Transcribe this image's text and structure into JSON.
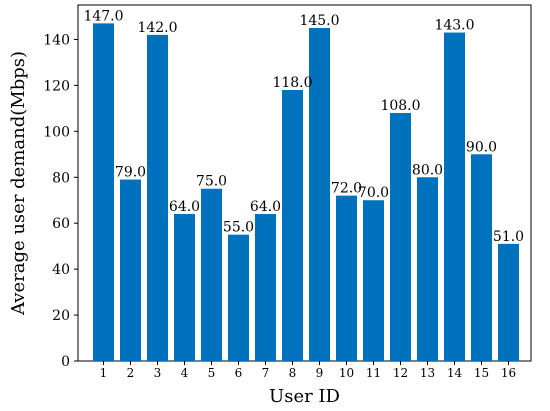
{
  "chart_data": {
    "type": "bar",
    "categories": [
      "1",
      "2",
      "3",
      "4",
      "5",
      "6",
      "7",
      "8",
      "9",
      "10",
      "11",
      "12",
      "13",
      "14",
      "15",
      "16"
    ],
    "values": [
      147.0,
      79.0,
      142.0,
      64.0,
      75.0,
      55.0,
      64.0,
      118.0,
      145.0,
      72.0,
      70.0,
      108.0,
      80.0,
      143.0,
      90.0,
      51.0
    ],
    "value_labels": [
      "147.0",
      "79.0",
      "142.0",
      "64.0",
      "75.0",
      "55.0",
      "64.0",
      "118.0",
      "145.0",
      "72.0",
      "70.0",
      "108.0",
      "80.0",
      "143.0",
      "90.0",
      "51.0"
    ],
    "title": "",
    "xlabel": "User ID",
    "ylabel": "Average user demand(Mbps)",
    "ylim": [
      0,
      155
    ],
    "yticks": [
      0,
      20,
      40,
      60,
      80,
      100,
      120,
      140
    ],
    "ytick_labels": [
      "0",
      "20",
      "40",
      "60",
      "80",
      "100",
      "120",
      "140"
    ],
    "grid": false,
    "bar_color": "#0072BD"
  }
}
